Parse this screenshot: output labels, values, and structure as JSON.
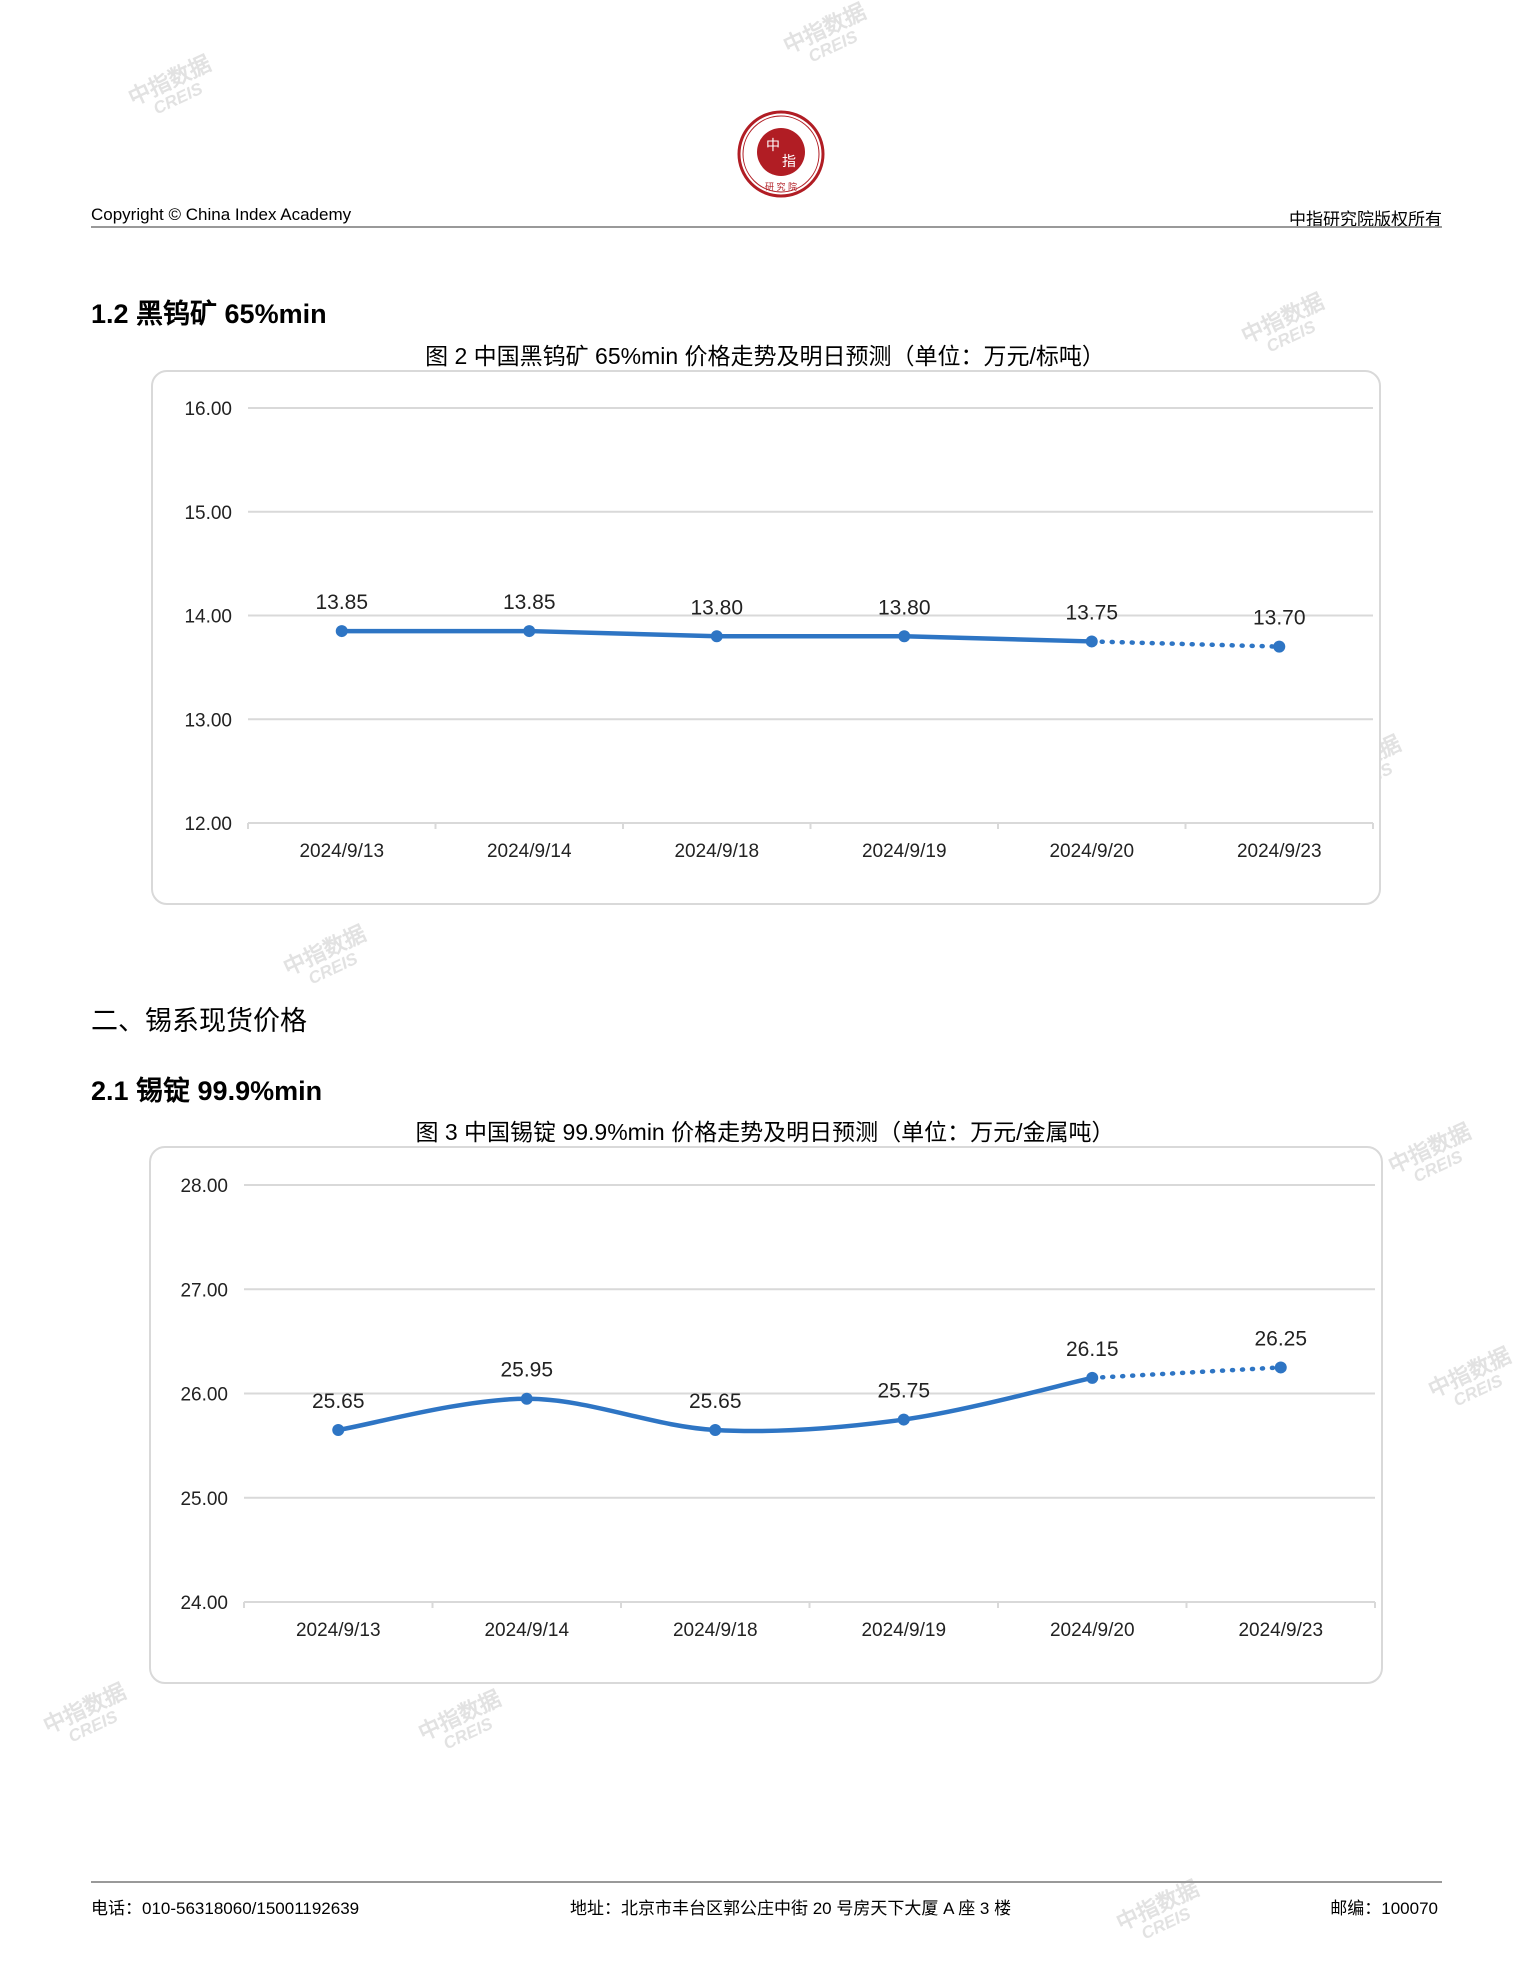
{
  "header": {
    "logo_text": "CHINA INDEX ACADEMY 中指 研究院",
    "copyright": "Copyright © China Index Academy",
    "rights": "中指研究院版权所有"
  },
  "sections": {
    "s1_2": "1.2 黑钨矿 65%min",
    "s2": "二、锡系现货价格",
    "s2_1": "2.1 锡锭 99.9%min"
  },
  "watermark": {
    "cn": "中指数据",
    "en": "CREIS"
  },
  "chart_data": [
    {
      "type": "line",
      "title": "图 2 中国黑钨矿 65%min 价格走势及明日预测（单位：万元/标吨）",
      "categories": [
        "2024/9/13",
        "2024/9/14",
        "2024/9/18",
        "2024/9/19",
        "2024/9/20",
        "2024/9/23"
      ],
      "values": [
        13.85,
        13.85,
        13.8,
        13.8,
        13.75,
        13.7
      ],
      "value_labels": [
        "13.85",
        "13.85",
        "13.80",
        "13.80",
        "13.75",
        "13.70"
      ],
      "forecast_from_index": 4,
      "ylim": [
        12,
        16
      ],
      "yticks": [
        "12.00",
        "13.00",
        "14.00",
        "15.00",
        "16.00"
      ],
      "grid": true,
      "smooth": false,
      "color": "#2e75c4"
    },
    {
      "type": "line",
      "title": "图 3 中国锡锭 99.9%min 价格走势及明日预测（单位：万元/金属吨）",
      "categories": [
        "2024/9/13",
        "2024/9/14",
        "2024/9/18",
        "2024/9/19",
        "2024/9/20",
        "2024/9/23"
      ],
      "values": [
        25.65,
        25.95,
        25.65,
        25.75,
        26.15,
        26.25
      ],
      "value_labels": [
        "25.65",
        "25.95",
        "25.65",
        "25.75",
        "26.15",
        "26.25"
      ],
      "forecast_from_index": 4,
      "ylim": [
        24,
        28
      ],
      "yticks": [
        "24.00",
        "25.00",
        "26.00",
        "27.00",
        "28.00"
      ],
      "grid": true,
      "smooth": true,
      "color": "#2e75c4"
    }
  ],
  "footer": {
    "phone": "电话：010-56318060/15001192639",
    "address": "地址：北京市丰台区郭公庄中街 20 号房天下大厦 A 座 3 楼",
    "postcode": "邮编：100070"
  }
}
